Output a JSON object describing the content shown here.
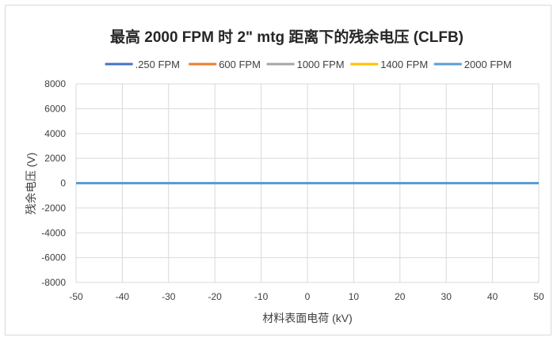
{
  "chart_data": {
    "type": "line",
    "title": "最高 2000 FPM 时 2\" mtg 距离下的残余电压 (CLFB)",
    "xlabel": "材料表面电荷 (kV)",
    "ylabel": "残余电压 (V)",
    "xlim": [
      -50,
      50
    ],
    "ylim": [
      -8000,
      8000
    ],
    "x_ticks": [
      "-50",
      "-40",
      "-30",
      "-20",
      "-10",
      "0",
      "10",
      "20",
      "30",
      "40",
      "50"
    ],
    "y_ticks": [
      "8000",
      "6000",
      "4000",
      "2000",
      "0",
      "-2000",
      "-4000",
      "-6000",
      "-8000"
    ],
    "grid": true,
    "legend_position": "top",
    "x": [
      -50,
      -40,
      -30,
      -20,
      -10,
      0,
      10,
      20,
      30,
      40,
      50
    ],
    "series": [
      {
        "name": ".250 FPM",
        "color": "#4472c4",
        "values": [
          0,
          0,
          0,
          0,
          0,
          0,
          0,
          0,
          0,
          0,
          0
        ]
      },
      {
        "name": "600 FPM",
        "color": "#ed7d31",
        "values": [
          0,
          0,
          0,
          0,
          0,
          0,
          0,
          0,
          0,
          0,
          0
        ]
      },
      {
        "name": "1000 FPM",
        "color": "#a5a5a5",
        "values": [
          0,
          0,
          0,
          0,
          0,
          0,
          0,
          0,
          0,
          0,
          0
        ]
      },
      {
        "name": "1400 FPM",
        "color": "#ffc000",
        "values": [
          0,
          0,
          0,
          0,
          0,
          0,
          0,
          0,
          0,
          0,
          0
        ]
      },
      {
        "name": "2000 FPM",
        "color": "#5b9bd5",
        "values": [
          0,
          0,
          0,
          0,
          0,
          0,
          0,
          0,
          0,
          0,
          0
        ]
      }
    ]
  }
}
